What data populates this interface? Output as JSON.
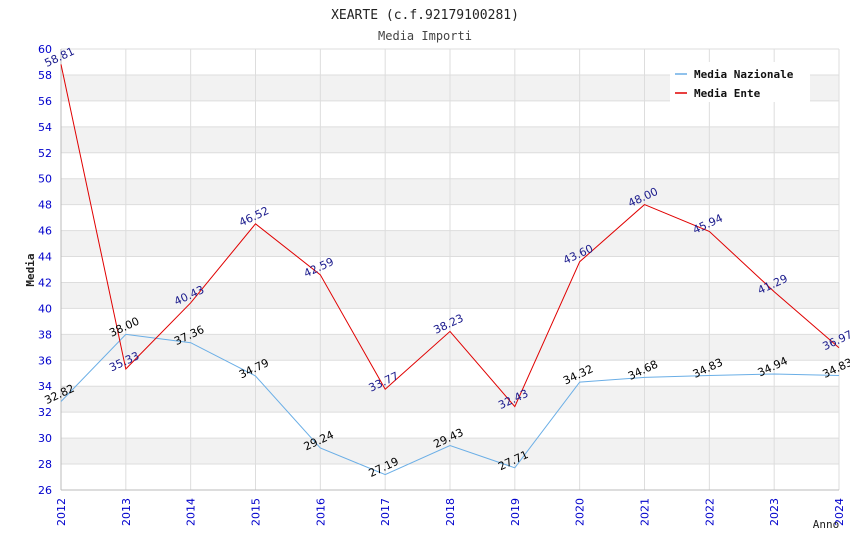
{
  "chart_data": {
    "type": "line",
    "title": "XEARTE (c.f.92179100281)",
    "subtitle": "Media Importi",
    "xlabel": "Anno",
    "ylabel": "Media",
    "ylim": [
      26,
      60
    ],
    "ytick_step": 2,
    "categories": [
      "2012",
      "2013",
      "2014",
      "2015",
      "2016",
      "2017",
      "2018",
      "2019",
      "2020",
      "2021",
      "2022",
      "2023",
      "2024"
    ],
    "series": [
      {
        "name": "Media Nazionale",
        "color": "#6aaee6",
        "label_color": "#000000",
        "values": [
          32.82,
          38.0,
          37.36,
          34.79,
          29.24,
          27.19,
          29.43,
          27.71,
          34.32,
          34.68,
          34.83,
          34.94,
          34.83
        ],
        "labels": [
          "32.82",
          "38.00",
          "37.36",
          "34.79",
          "29.24",
          "27.19",
          "29.43",
          "27.71",
          "34.32",
          "34.68",
          "34.83",
          "34.94",
          "34.83"
        ]
      },
      {
        "name": "Media Ente",
        "color": "#e00000",
        "label_color": "#1a1a8c",
        "values": [
          58.81,
          35.33,
          40.43,
          46.52,
          42.59,
          33.77,
          38.23,
          32.43,
          43.6,
          48.0,
          45.94,
          41.29,
          36.97
        ],
        "labels": [
          "58.81",
          "35.33",
          "40.43",
          "46.52",
          "42.59",
          "33.77",
          "38.23",
          "32.43",
          "43.60",
          "48.00",
          "45.94",
          "41.29",
          "36.97"
        ]
      }
    ],
    "legend_position": "top-right",
    "grid": true,
    "colors": {
      "axis_tick_label": "#0000cc",
      "band": "#f2f2f2",
      "grid": "#dddddd",
      "text": "#333333"
    }
  }
}
